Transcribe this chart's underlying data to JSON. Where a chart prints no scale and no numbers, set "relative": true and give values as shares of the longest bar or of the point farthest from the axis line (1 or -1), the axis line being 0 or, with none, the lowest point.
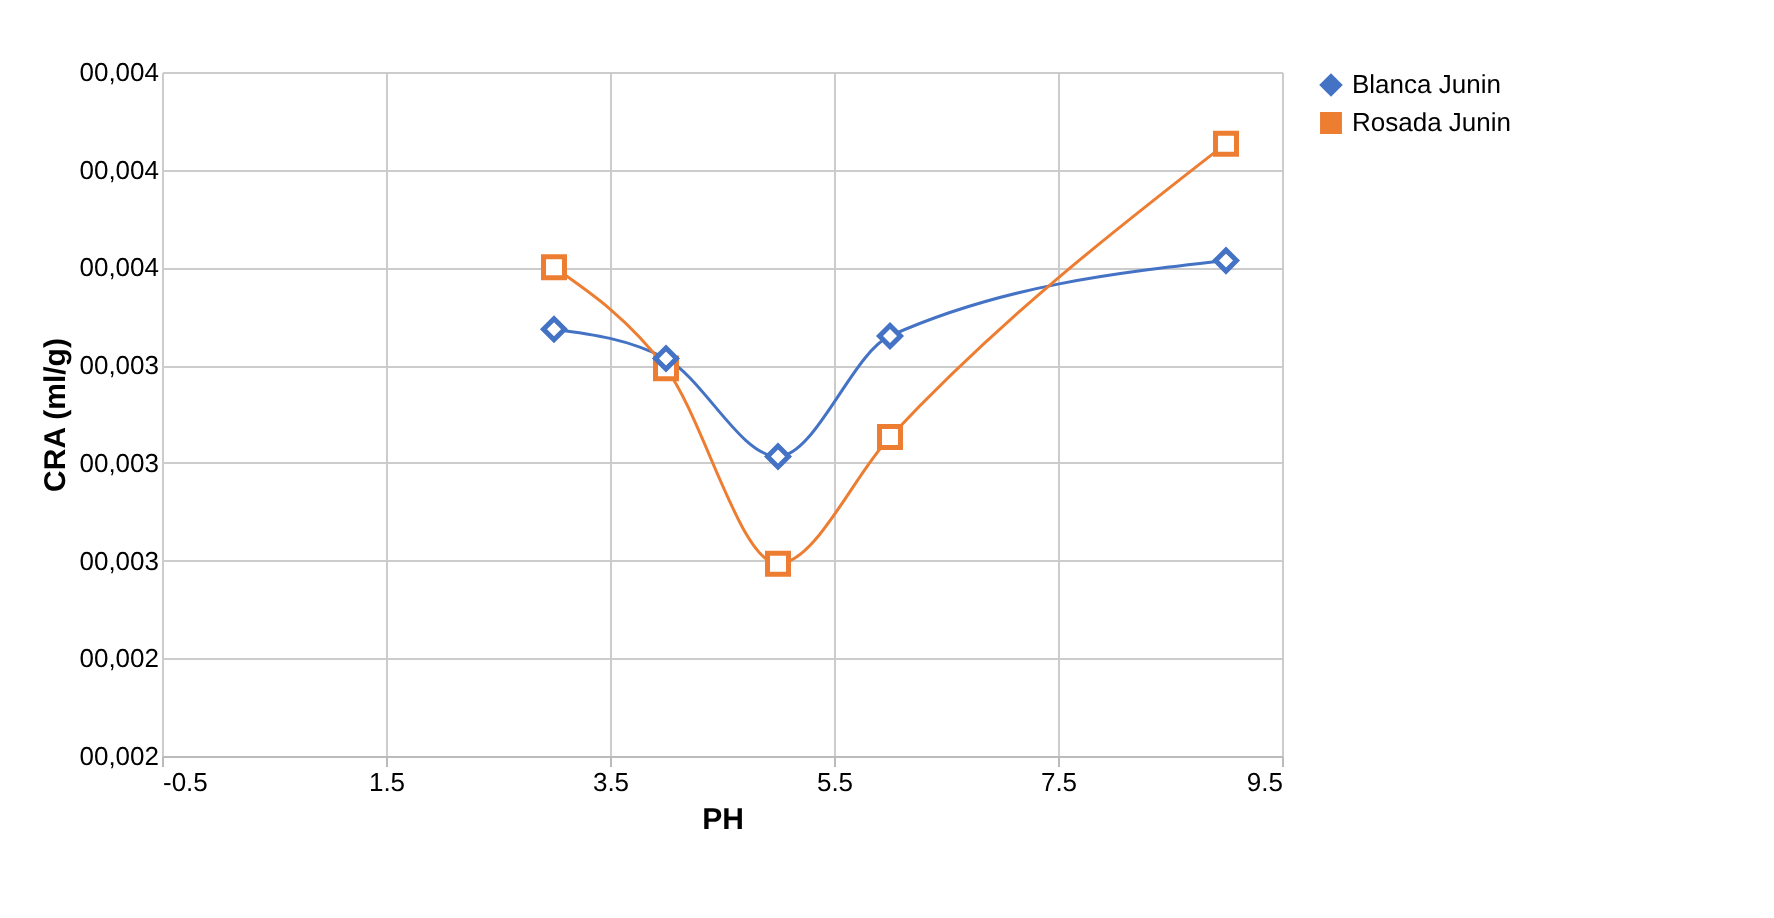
{
  "chart_data": {
    "type": "line",
    "xlabel": "PH",
    "ylabel": "CRA (ml/g)",
    "x": [
      3,
      4,
      5,
      6,
      9
    ],
    "series": [
      {
        "name": "Blanca Junin",
        "color": "#4472c4",
        "marker": "diamond",
        "values": [
          0.697,
          0.649,
          0.489,
          0.686,
          0.809
        ]
      },
      {
        "name": "Rosada Junin",
        "color": "#ed7d31",
        "marker": "square",
        "values": [
          0.798,
          0.633,
          0.314,
          0.521,
          1
        ]
      }
    ],
    "xlim": [
      -0.5,
      9.5
    ],
    "xticks": [
      -0.5,
      1.5,
      3.5,
      5.5,
      7.5,
      9.5
    ],
    "relative": true,
    "annotations": [
      "00,002",
      "00,002",
      "00,003",
      "00,003",
      "00,003",
      "00,004",
      "00,004",
      "00,004"
    ],
    "grid": true,
    "legend": "right",
    "line_style": "solid"
  }
}
